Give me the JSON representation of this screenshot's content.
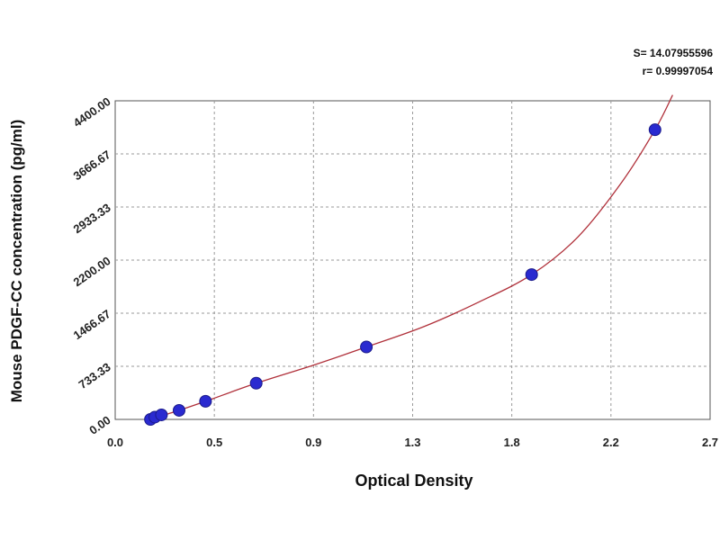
{
  "chart_data": {
    "type": "scatter",
    "title": "",
    "xlabel": "Optical Density",
    "ylabel": "Mouse PDGF-CC concentration (pg/ml)",
    "stats": {
      "s": "S= 14.07955596",
      "r": "r= 0.99997054"
    },
    "xlim": [
      0,
      2.7
    ],
    "ylim": [
      0,
      4400
    ],
    "x_ticks": [
      0.0,
      0.45,
      0.9,
      1.35,
      1.8,
      2.25,
      2.7
    ],
    "x_tick_labels": [
      "0.0",
      "0.5",
      "0.9",
      "1.3",
      "1.8",
      "2.2",
      "2.7"
    ],
    "y_ticks": [
      0,
      733.33,
      1466.67,
      2200,
      2933.33,
      3666.67,
      4400
    ],
    "y_tick_labels": [
      "0.00",
      "733.33",
      "1466.67",
      "2200.00",
      "2933.33",
      "3666.67",
      "4400.00"
    ],
    "grid": true,
    "points": [
      {
        "x": 0.16,
        "y": 0
      },
      {
        "x": 0.18,
        "y": 31.25
      },
      {
        "x": 0.21,
        "y": 62.5
      },
      {
        "x": 0.29,
        "y": 125
      },
      {
        "x": 0.41,
        "y": 250
      },
      {
        "x": 0.64,
        "y": 500
      },
      {
        "x": 1.14,
        "y": 1000
      },
      {
        "x": 1.89,
        "y": 2000
      },
      {
        "x": 2.45,
        "y": 4000
      }
    ],
    "fit_curve": [
      {
        "x": 0.15,
        "y": -20
      },
      {
        "x": 0.16,
        "y": 0
      },
      {
        "x": 0.29,
        "y": 125
      },
      {
        "x": 0.41,
        "y": 250
      },
      {
        "x": 0.64,
        "y": 500
      },
      {
        "x": 0.9,
        "y": 750
      },
      {
        "x": 1.14,
        "y": 1000
      },
      {
        "x": 1.4,
        "y": 1280
      },
      {
        "x": 1.65,
        "y": 1620
      },
      {
        "x": 1.89,
        "y": 2000
      },
      {
        "x": 2.1,
        "y": 2520
      },
      {
        "x": 2.3,
        "y": 3280
      },
      {
        "x": 2.45,
        "y": 4000
      },
      {
        "x": 2.53,
        "y": 4480
      }
    ],
    "colors": {
      "curve": "#b0303a",
      "point": "#2a2ad0",
      "grid": "#9a9a9a",
      "axis": "#333333"
    }
  }
}
